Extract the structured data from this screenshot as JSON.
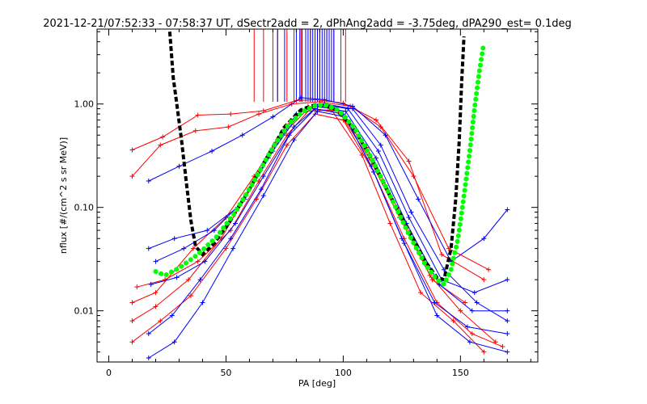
{
  "chart_data": {
    "type": "scatter",
    "title": "2021-12-21/07:52:33 - 07:58:37 UT, dSectr2add = 2, dPhAng2add = -3.75deg, dPA290_est=   0.1deg",
    "xlabel": "PA [deg]",
    "ylabel": "nflux [#/(cm^2 s sr MeV)]",
    "xlim": [
      -5,
      183
    ],
    "ylim": [
      0.0032,
      5.3
    ],
    "yscale": "log",
    "grid": false,
    "x_ticks": [
      0,
      50,
      100,
      150
    ],
    "x_tick_labels": [
      "0",
      "50",
      "100",
      "150"
    ],
    "y_ticks": [
      0.01,
      0.1,
      1.0
    ],
    "y_tick_labels": [
      "0.01",
      "0.10",
      "1.00"
    ],
    "colors": {
      "red": "#ff0000",
      "blue": "#0000ff",
      "black": "#000000",
      "green": "#00ff00"
    },
    "series": [
      {
        "color": "red",
        "style": "line+cross",
        "sample_curves": [
          {
            "x": [
              10,
              23,
              38,
              52,
              66,
              80,
              88,
              100,
              114,
              128,
              142,
              160
            ],
            "y": [
              0.36,
              0.48,
              0.78,
              0.8,
              0.86,
              1.08,
              1.1,
              1.02,
              0.7,
              0.28,
              0.035,
              0.02
            ]
          },
          {
            "x": [
              10,
              22,
              37,
              51,
              64,
              78,
              90,
              103,
              116,
              130,
              145,
              162
            ],
            "y": [
              0.2,
              0.4,
              0.55,
              0.6,
              0.8,
              1.0,
              1.05,
              0.95,
              0.6,
              0.2,
              0.04,
              0.025
            ]
          },
          {
            "x": [
              10,
              20,
              36,
              50,
              62,
              75,
              85,
              97,
              110,
              123,
              137,
              150,
              165
            ],
            "y": [
              0.012,
              0.015,
              0.04,
              0.08,
              0.2,
              0.6,
              0.95,
              0.9,
              0.38,
              0.1,
              0.022,
              0.01,
              0.005
            ]
          },
          {
            "x": [
              10,
              20,
              34,
              48,
              60,
              72,
              84,
              95,
              108,
              120,
              133,
              147,
              160
            ],
            "y": [
              0.008,
              0.011,
              0.02,
              0.05,
              0.15,
              0.45,
              0.85,
              0.88,
              0.32,
              0.07,
              0.015,
              0.008,
              0.004
            ]
          },
          {
            "x": [
              12,
              24,
              38,
              52,
              64,
              76,
              86,
              98,
              111,
              124,
              138,
              152
            ],
            "y": [
              0.017,
              0.02,
              0.03,
              0.06,
              0.18,
              0.5,
              0.9,
              0.85,
              0.3,
              0.08,
              0.02,
              0.012
            ]
          },
          {
            "x": [
              10,
              22,
              35,
              50,
              63,
              76,
              88,
              100,
              113,
              126,
              140,
              155,
              168
            ],
            "y": [
              0.005,
              0.008,
              0.014,
              0.04,
              0.12,
              0.4,
              0.8,
              0.7,
              0.22,
              0.05,
              0.012,
              0.006,
              0.0045
            ]
          }
        ],
        "spikes_x": [
          62,
          66,
          70,
          72,
          76,
          79,
          82,
          86,
          90,
          93,
          96,
          99,
          101
        ]
      },
      {
        "color": "blue",
        "style": "line+cross",
        "sample_curves": [
          {
            "x": [
              17,
              30,
              44,
              57,
              70,
              82,
              92,
              104,
              118,
              132,
              146,
              160,
              170
            ],
            "y": [
              0.18,
              0.25,
              0.35,
              0.5,
              0.75,
              1.15,
              1.1,
              0.95,
              0.5,
              0.12,
              0.03,
              0.05,
              0.095
            ]
          },
          {
            "x": [
              17,
              28,
              42,
              55,
              68,
              80,
              90,
              102,
              115,
              128,
              142,
              156,
              170
            ],
            "y": [
              0.04,
              0.05,
              0.06,
              0.1,
              0.3,
              0.8,
              1.0,
              0.9,
              0.35,
              0.08,
              0.02,
              0.015,
              0.02
            ]
          },
          {
            "x": [
              18,
              29,
              41,
              54,
              66,
              79,
              89,
              101,
              114,
              127,
              141,
              155,
              170
            ],
            "y": [
              0.018,
              0.021,
              0.03,
              0.07,
              0.2,
              0.6,
              0.95,
              0.85,
              0.3,
              0.07,
              0.018,
              0.01,
              0.01
            ]
          },
          {
            "x": [
              17,
              27,
              39,
              52,
              65,
              77,
              88,
              100,
              112,
              125,
              139,
              153,
              170
            ],
            "y": [
              0.006,
              0.009,
              0.02,
              0.05,
              0.15,
              0.5,
              0.9,
              0.8,
              0.25,
              0.05,
              0.012,
              0.007,
              0.006
            ]
          },
          {
            "x": [
              17,
              28,
              40,
              53,
              66,
              79,
              89,
              101,
              113,
              126,
              140,
              154,
              170
            ],
            "y": [
              0.0035,
              0.005,
              0.012,
              0.04,
              0.13,
              0.45,
              0.85,
              0.75,
              0.22,
              0.045,
              0.009,
              0.005,
              0.004
            ]
          },
          {
            "x": [
              20,
              32,
              45,
              58,
              70,
              82,
              92,
              104,
              116,
              129,
              143,
              157,
              170
            ],
            "y": [
              0.03,
              0.04,
              0.06,
              0.12,
              0.35,
              0.85,
              1.0,
              0.9,
              0.4,
              0.09,
              0.025,
              0.012,
              0.008
            ]
          }
        ],
        "spikes_x": [
          72,
          75,
          80,
          81.5,
          82.5,
          84,
          85,
          86,
          87,
          88,
          89,
          90,
          91,
          92,
          93,
          94,
          95,
          96
        ]
      },
      {
        "color": "black",
        "style": "thick dashed",
        "points": [
          [
            26,
            5.0
          ],
          [
            27.5,
            1.8
          ],
          [
            29,
            1.0
          ],
          [
            31,
            0.45
          ],
          [
            33,
            0.18
          ],
          [
            35,
            0.075
          ],
          [
            37,
            0.042
          ],
          [
            40,
            0.035
          ],
          [
            45,
            0.045
          ],
          [
            52,
            0.075
          ],
          [
            60,
            0.15
          ],
          [
            68,
            0.32
          ],
          [
            75,
            0.6
          ],
          [
            82,
            0.88
          ],
          [
            88,
            0.98
          ],
          [
            92,
            0.97
          ],
          [
            97,
            0.88
          ],
          [
            104,
            0.6
          ],
          [
            112,
            0.3
          ],
          [
            120,
            0.13
          ],
          [
            128,
            0.06
          ],
          [
            135,
            0.03
          ],
          [
            140,
            0.021
          ],
          [
            143,
            0.02
          ],
          [
            146,
            0.04
          ],
          [
            148,
            0.12
          ],
          [
            149.5,
            0.45
          ],
          [
            150.5,
            1.6
          ],
          [
            151.5,
            4.5
          ]
        ]
      },
      {
        "color": "green",
        "style": "thick dotted",
        "points": [
          [
            20,
            0.024
          ],
          [
            24,
            0.022
          ],
          [
            30,
            0.026
          ],
          [
            38,
            0.035
          ],
          [
            46,
            0.052
          ],
          [
            54,
            0.09
          ],
          [
            62,
            0.18
          ],
          [
            70,
            0.38
          ],
          [
            77,
            0.65
          ],
          [
            84,
            0.88
          ],
          [
            89,
            0.98
          ],
          [
            93,
            0.97
          ],
          [
            98,
            0.87
          ],
          [
            105,
            0.58
          ],
          [
            112,
            0.3
          ],
          [
            120,
            0.13
          ],
          [
            128,
            0.055
          ],
          [
            135,
            0.028
          ],
          [
            140,
            0.02
          ],
          [
            143,
            0.018
          ],
          [
            146,
            0.025
          ],
          [
            149,
            0.05
          ],
          [
            151.5,
            0.13
          ],
          [
            154,
            0.35
          ],
          [
            156,
            0.9
          ],
          [
            158,
            2.0
          ],
          [
            160,
            3.9
          ]
        ]
      }
    ]
  }
}
